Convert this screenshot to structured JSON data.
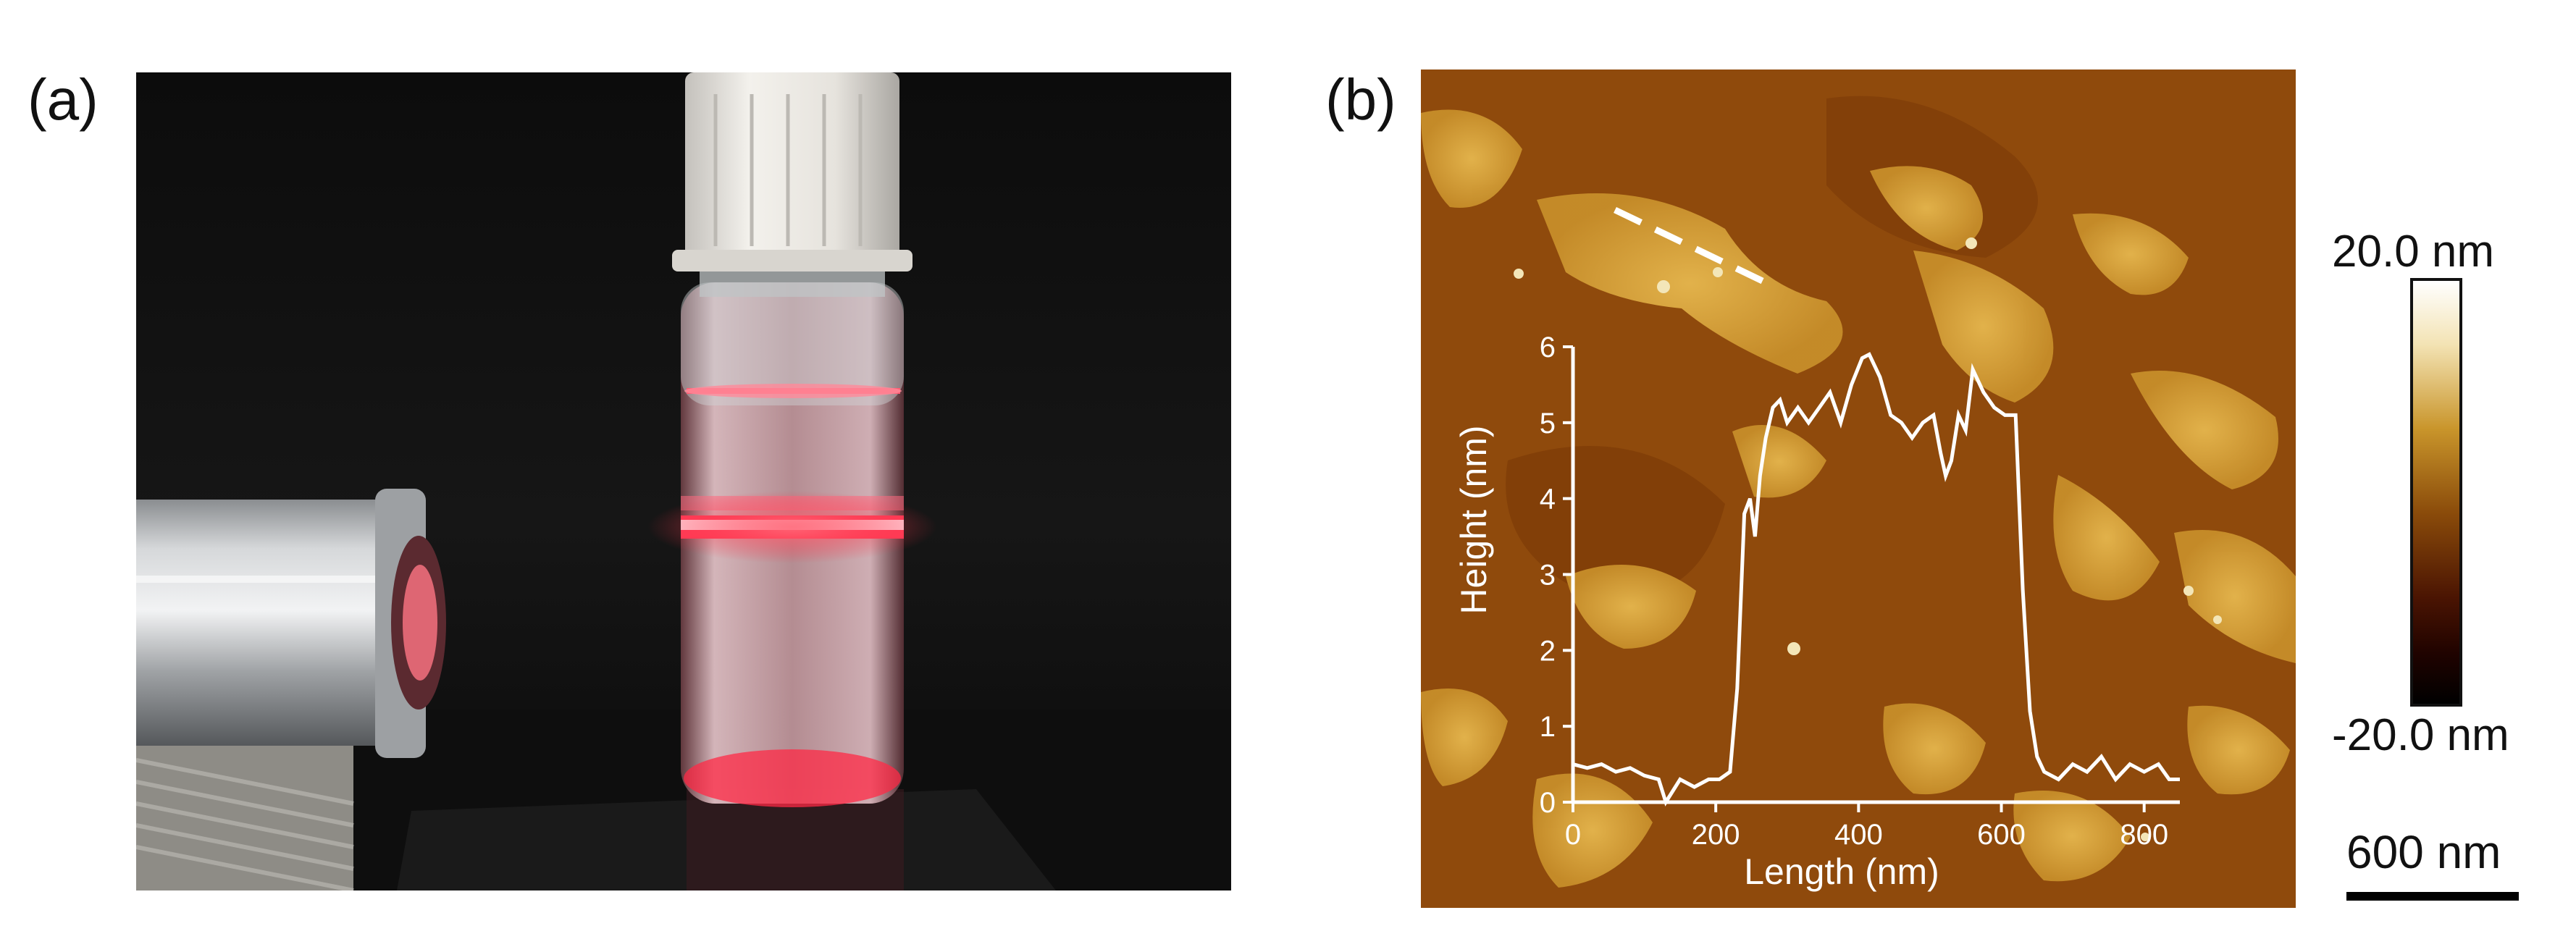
{
  "panel_a": {
    "label": "(a)"
  },
  "panel_b": {
    "label": "(b)",
    "colorbar": {
      "max_label": "20.0 nm",
      "min_label": "-20.0 nm"
    },
    "scale_bar": {
      "label": "600 nm"
    }
  },
  "chart_data": {
    "type": "line",
    "xlabel": "Length (nm)",
    "ylabel": "Height (nm)",
    "xlim": [
      0,
      850
    ],
    "ylim": [
      0,
      6
    ],
    "xticks": [
      0,
      200,
      400,
      600,
      800
    ],
    "yticks": [
      0,
      1,
      2,
      3,
      4,
      5,
      6
    ],
    "line_color": "#ffffff",
    "series": [
      {
        "x": [
          0,
          20,
          40,
          60,
          80,
          100,
          120,
          130,
          150,
          170,
          190,
          205,
          220,
          230,
          240,
          248,
          255,
          262,
          270,
          280,
          290,
          300,
          315,
          330,
          345,
          360,
          375,
          390,
          405,
          415,
          430,
          445,
          460,
          475,
          490,
          505,
          515,
          522,
          530,
          540,
          550,
          560,
          575,
          590,
          605,
          620,
          630,
          640,
          650,
          660,
          680,
          700,
          720,
          740,
          760,
          780,
          800,
          820,
          835,
          850
        ],
        "y": [
          0.5,
          0.45,
          0.5,
          0.4,
          0.45,
          0.35,
          0.3,
          0.0,
          0.3,
          0.2,
          0.3,
          0.3,
          0.4,
          1.5,
          3.8,
          4.0,
          3.5,
          4.3,
          4.8,
          5.2,
          5.3,
          5.0,
          5.2,
          5.0,
          5.2,
          5.4,
          5.0,
          5.5,
          5.85,
          5.9,
          5.6,
          5.1,
          5.0,
          4.8,
          5.0,
          5.1,
          4.6,
          4.3,
          4.5,
          5.1,
          4.9,
          5.7,
          5.4,
          5.2,
          5.1,
          5.1,
          2.8,
          1.2,
          0.6,
          0.4,
          0.3,
          0.5,
          0.4,
          0.6,
          0.3,
          0.5,
          0.4,
          0.5,
          0.3,
          0.3
        ]
      }
    ]
  }
}
